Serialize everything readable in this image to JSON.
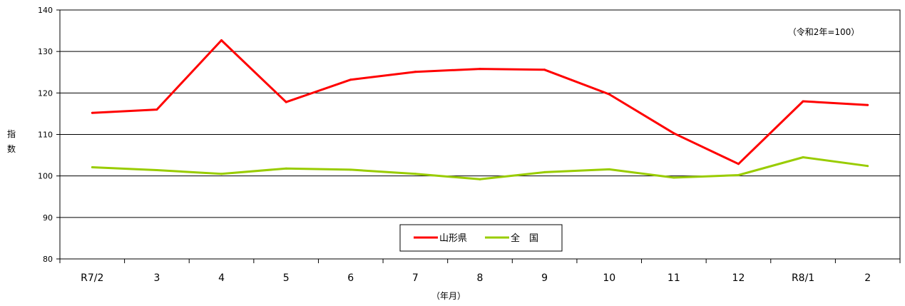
{
  "chart_data": {
    "type": "line",
    "categories": [
      "R7/2",
      "3",
      "4",
      "5",
      "6",
      "7",
      "8",
      "9",
      "10",
      "11",
      "12",
      "R8/1",
      "2"
    ],
    "series": [
      {
        "name": "山形県",
        "color": "#ff0000",
        "values": [
          115.2,
          116.0,
          132.7,
          117.8,
          123.2,
          125.1,
          125.8,
          125.6,
          119.7,
          110.3,
          102.9,
          118.0,
          117.1
        ]
      },
      {
        "name": "全　国",
        "color": "#99cc00",
        "values": [
          102.1,
          101.4,
          100.5,
          101.8,
          101.5,
          100.5,
          99.2,
          100.9,
          101.6,
          99.6,
          100.2,
          104.5,
          102.4
        ]
      }
    ],
    "ylim": [
      80,
      140
    ],
    "yticks": [
      "80",
      "90",
      "100",
      "110",
      "120",
      "130",
      "140"
    ],
    "ylabel": "指数",
    "xlabel": "（年月）",
    "annotation": "（令和2年=100）",
    "grid": true,
    "legend": "bottom-center"
  }
}
